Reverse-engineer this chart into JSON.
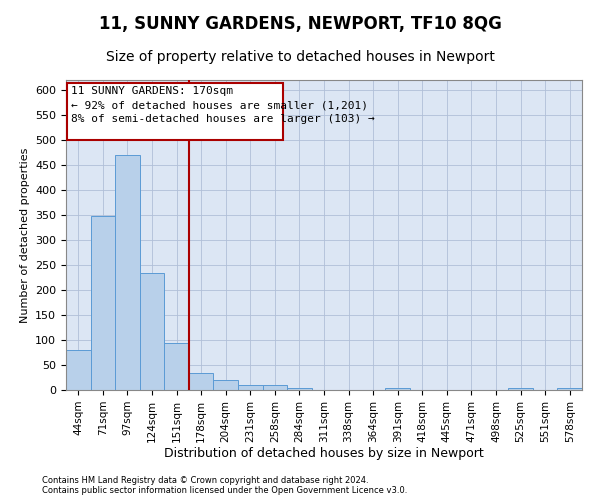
{
  "title1": "11, SUNNY GARDENS, NEWPORT, TF10 8QG",
  "title2": "Size of property relative to detached houses in Newport",
  "xlabel": "Distribution of detached houses by size in Newport",
  "ylabel": "Number of detached properties",
  "footer": "Contains HM Land Registry data © Crown copyright and database right 2024.\nContains public sector information licensed under the Open Government Licence v3.0.",
  "categories": [
    "44sqm",
    "71sqm",
    "97sqm",
    "124sqm",
    "151sqm",
    "178sqm",
    "204sqm",
    "231sqm",
    "258sqm",
    "284sqm",
    "311sqm",
    "338sqm",
    "364sqm",
    "391sqm",
    "418sqm",
    "445sqm",
    "471sqm",
    "498sqm",
    "525sqm",
    "551sqm",
    "578sqm"
  ],
  "values": [
    80,
    348,
    471,
    235,
    95,
    35,
    20,
    10,
    10,
    5,
    0,
    0,
    0,
    5,
    0,
    0,
    0,
    0,
    5,
    0,
    5
  ],
  "bar_color": "#b8d0ea",
  "bar_edge_color": "#5b9bd5",
  "vline_x_index": 3,
  "vline_color": "#aa0000",
  "annotation_text": "11 SUNNY GARDENS: 170sqm\n← 92% of detached houses are smaller (1,201)\n8% of semi-detached houses are larger (103) →",
  "annotation_box_color": "#aa0000",
  "ylim": [
    0,
    620
  ],
  "yticks": [
    0,
    50,
    100,
    150,
    200,
    250,
    300,
    350,
    400,
    450,
    500,
    550,
    600
  ],
  "background_color": "#ffffff",
  "plot_bg_color": "#dce6f4",
  "grid_color": "#b0bfd8",
  "title1_fontsize": 12,
  "title2_fontsize": 10,
  "xlabel_fontsize": 9,
  "ylabel_fontsize": 8,
  "tick_fontsize": 8,
  "ann_fontsize": 8
}
